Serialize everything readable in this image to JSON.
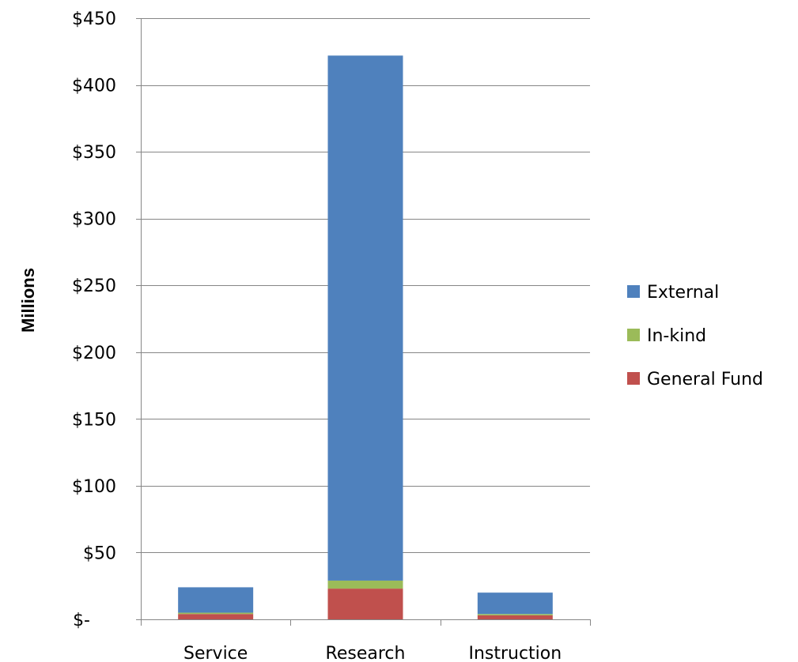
{
  "chart_data": {
    "type": "bar",
    "stacked": true,
    "categories": [
      "Service",
      "Research",
      "Instruction"
    ],
    "series": [
      {
        "name": "General Fund",
        "color": "#C0504D",
        "values": [
          4,
          23,
          3
        ]
      },
      {
        "name": "In-kind",
        "color": "#9BBB59",
        "values": [
          1,
          6,
          1
        ]
      },
      {
        "name": "External",
        "color": "#4F81BD",
        "values": [
          19,
          393,
          16
        ]
      }
    ],
    "ylabel": "Millions",
    "xlabel": "",
    "ylim": [
      0,
      450
    ],
    "yticks": [
      0,
      50,
      100,
      150,
      200,
      250,
      300,
      350,
      400,
      450
    ],
    "ytick_labels": [
      "$-",
      "$50",
      "$100",
      "$150",
      "$200",
      "$250",
      "$300",
      "$350",
      "$400",
      "$450"
    ],
    "grid": "horizontal",
    "legend": {
      "placement": "right",
      "order": [
        "External",
        "In-kind",
        "General Fund"
      ]
    }
  }
}
